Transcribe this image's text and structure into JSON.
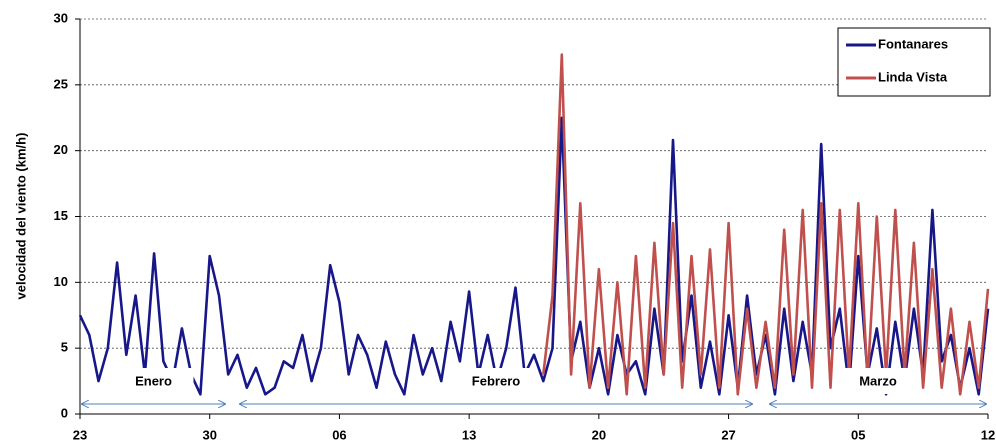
{
  "chart_data": {
    "type": "line",
    "y_label": "velocidad del viento (km/h)",
    "xlim": [
      0,
      49
    ],
    "xticks": [
      {
        "value": 0,
        "label": "23"
      },
      {
        "value": 7,
        "label": "30"
      },
      {
        "value": 14,
        "label": "06"
      },
      {
        "value": 21,
        "label": "13"
      },
      {
        "value": 28,
        "label": "20"
      },
      {
        "value": 35,
        "label": "27"
      },
      {
        "value": 42,
        "label": "05"
      },
      {
        "value": 49,
        "label": "12"
      }
    ],
    "ylim": [
      0,
      30
    ],
    "yticks": [
      0,
      5,
      10,
      15,
      20,
      25,
      30
    ],
    "grid": true,
    "legend": "upper right",
    "annotations": [
      "Enero",
      "Febrero",
      "Marzo"
    ],
    "x": [
      0,
      0.5,
      1,
      1.5,
      2,
      2.5,
      3,
      3.5,
      4,
      4.5,
      5,
      5.5,
      6,
      6.5,
      7,
      7.5,
      8,
      8.5,
      9,
      9.5,
      10,
      10.5,
      11,
      11.5,
      12,
      12.5,
      13,
      13.5,
      14,
      14.5,
      15,
      15.5,
      16,
      16.5,
      17,
      17.5,
      18,
      18.5,
      19,
      19.5,
      20,
      20.5,
      21,
      21.5,
      22,
      22.5,
      23,
      23.5,
      24,
      24.5,
      25,
      25.5,
      26,
      26.5,
      27,
      27.5,
      28,
      28.5,
      29,
      29.5,
      30,
      30.5,
      31,
      31.5,
      32,
      32.5,
      33,
      33.5,
      34,
      34.5,
      35,
      35.5,
      36,
      36.5,
      37,
      37.5,
      38,
      38.5,
      39,
      39.5,
      40,
      40.5,
      41,
      41.5,
      42,
      42.5,
      43,
      43.5,
      44,
      44.5,
      45,
      45.5,
      46,
      46.5,
      47,
      47.5,
      48,
      48.5,
      49
    ],
    "series": [
      {
        "name": "Fontanares",
        "color": "#17178a",
        "values": [
          7.5,
          6,
          2.5,
          5,
          11.5,
          4.5,
          9,
          3,
          12.2,
          4,
          2.5,
          6.5,
          3,
          1.5,
          12,
          9,
          3,
          4.5,
          2,
          3.5,
          1.5,
          2,
          4,
          3.5,
          6,
          2.5,
          5,
          11.3,
          8.5,
          3,
          6,
          4.5,
          2,
          5.5,
          3,
          1.5,
          6,
          3,
          5,
          2.5,
          7,
          4,
          9.3,
          3,
          6,
          2.5,
          5,
          9.6,
          3,
          4.5,
          2.5,
          5,
          22.5,
          4,
          7,
          2,
          5,
          1.5,
          6,
          3,
          4,
          1.5,
          8,
          3,
          20.8,
          4,
          9,
          2,
          5.5,
          1.5,
          7.5,
          2,
          9,
          3,
          6,
          1.5,
          8,
          2.5,
          7,
          3,
          20.5,
          5,
          8,
          2,
          12,
          3,
          6.5,
          1.5,
          7,
          2.5,
          8,
          3,
          15.5,
          4,
          6,
          2,
          5,
          1.5,
          8
        ]
      },
      {
        "name": "Linda Vista",
        "color": "#c0504d",
        "values": [
          null,
          null,
          null,
          null,
          null,
          null,
          null,
          null,
          null,
          null,
          null,
          null,
          null,
          null,
          null,
          null,
          null,
          null,
          null,
          null,
          null,
          null,
          null,
          null,
          null,
          null,
          null,
          null,
          null,
          null,
          null,
          null,
          null,
          null,
          null,
          null,
          null,
          null,
          null,
          null,
          null,
          null,
          null,
          null,
          null,
          null,
          null,
          null,
          null,
          null,
          3,
          9,
          27.3,
          3,
          16,
          2,
          11,
          2,
          10,
          1.5,
          12,
          2,
          13,
          3,
          14.5,
          2,
          12,
          3,
          12.5,
          2,
          14.5,
          1.5,
          8,
          2,
          7,
          2,
          14,
          3,
          15.5,
          2,
          16,
          2,
          15.5,
          3,
          16,
          2.5,
          15,
          3,
          15.5,
          3,
          13,
          2,
          11,
          2,
          8,
          1.5,
          7,
          2,
          9.5
        ]
      }
    ]
  }
}
